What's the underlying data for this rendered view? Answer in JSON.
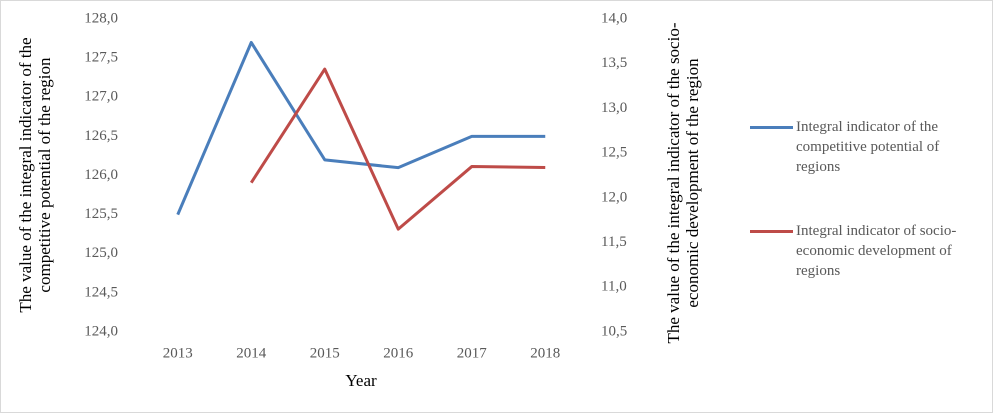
{
  "chart_data": {
    "type": "line",
    "xlabel": "Year",
    "ylabel": "The value of the integral indicator of the competitive potential of the region",
    "y2label": "The value of the integral indicator of the socio-economic development of the region",
    "categories": [
      "2013",
      "2014",
      "2015",
      "2016",
      "2017",
      "2018"
    ],
    "series": [
      {
        "name": "Integral indicator of the competitive potential of regions",
        "color": "#4a7ebb",
        "values": [
          125.5,
          127.7,
          126.2,
          126.1,
          126.5,
          126.5
        ]
      },
      {
        "name": "Integral indicator of socio-economic development of regions",
        "color": "#be4b48",
        "axis": "y2",
        "values": [
          null,
          12.17,
          13.44,
          11.65,
          12.35,
          12.34
        ]
      }
    ],
    "ylim": [
      124,
      128
    ],
    "yticks": [
      {
        "value": 124,
        "label": "124,0"
      },
      {
        "value": 124.5,
        "label": "124,5"
      },
      {
        "value": 125,
        "label": "125,0"
      },
      {
        "value": 125.5,
        "label": "125,5"
      },
      {
        "value": 126,
        "label": "126,0"
      },
      {
        "value": 126.5,
        "label": "126,5"
      },
      {
        "value": 127,
        "label": "127,0"
      },
      {
        "value": 127.5,
        "label": "127,5"
      },
      {
        "value": 128,
        "label": "128,0"
      }
    ],
    "y2lim": [
      10.5,
      14
    ],
    "y2ticks": [
      {
        "value": 10.5,
        "label": "10,5"
      },
      {
        "value": 11,
        "label": "11,0"
      },
      {
        "value": 11.5,
        "label": "11,5"
      },
      {
        "value": 12,
        "label": "12,0"
      },
      {
        "value": 12.5,
        "label": "12,5"
      },
      {
        "value": 13,
        "label": "13,0"
      },
      {
        "value": 13.5,
        "label": "13,5"
      },
      {
        "value": 14,
        "label": "14,0"
      }
    ],
    "legend": "right",
    "grid": false
  }
}
